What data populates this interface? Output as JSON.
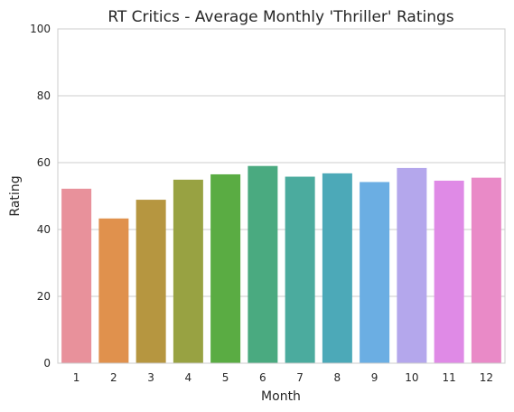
{
  "chart_data": {
    "type": "bar",
    "title": "RT Critics - Average Monthly 'Thriller' Ratings",
    "xlabel": "Month",
    "ylabel": "Rating",
    "categories": [
      "1",
      "2",
      "3",
      "4",
      "5",
      "6",
      "7",
      "8",
      "9",
      "10",
      "11",
      "12"
    ],
    "values": [
      52.2,
      43.3,
      48.9,
      54.9,
      56.5,
      59.0,
      55.8,
      56.8,
      54.2,
      58.4,
      54.6,
      55.5
    ],
    "ylim": [
      0,
      100
    ],
    "yticks": [
      0,
      20,
      40,
      60,
      80,
      100
    ],
    "grid": "horizontal",
    "legend": "none",
    "colors": [
      "#e8919b",
      "#e0914d",
      "#b69640",
      "#98a242",
      "#5aac43",
      "#4aaa80",
      "#4bab9e",
      "#4ca9b8",
      "#6baee3",
      "#b4a7ec",
      "#df8ae6",
      "#e98ac7"
    ]
  }
}
